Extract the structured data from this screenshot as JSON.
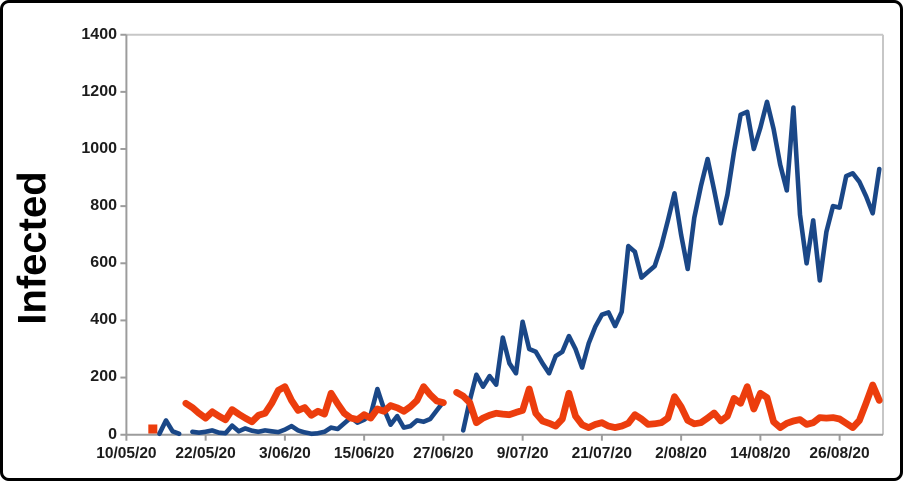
{
  "figure": {
    "ylabel": "Infected"
  },
  "chart_data": {
    "type": "line",
    "title": "",
    "xlabel": "",
    "ylabel": "Infected",
    "ylim": [
      0,
      1400
    ],
    "grid": "none",
    "legend_position": "none",
    "y_ticks": [
      0,
      200,
      400,
      600,
      800,
      1000,
      1200,
      1400
    ],
    "y_tick_labels": [
      "0",
      "200",
      "400",
      "600",
      "800",
      "1000",
      "1200",
      "1400"
    ],
    "x_tick_labels": [
      "10/05/20",
      "22/05/20",
      "3/06/20",
      "15/06/20",
      "27/06/20",
      "9/07/20",
      "21/07/20",
      "2/08/20",
      "14/08/20",
      "26/08/20"
    ],
    "x_tick_days": [
      0,
      12,
      24,
      36,
      48,
      60,
      72,
      84,
      96,
      108
    ],
    "x_axis_start_date": "10/05/20",
    "data_start_day_offset": 4,
    "dates": [
      "14/05",
      "15/05",
      "16/05",
      "17/05",
      "18/05",
      "19/05",
      "20/05",
      "21/05",
      "22/05",
      "23/05",
      "24/05",
      "25/05",
      "26/05",
      "27/05",
      "28/05",
      "29/05",
      "30/05",
      "31/05",
      "1/06",
      "2/06",
      "3/06",
      "4/06",
      "5/06",
      "6/06",
      "7/06",
      "8/06",
      "9/06",
      "10/06",
      "11/06",
      "12/06",
      "13/06",
      "14/06",
      "15/06",
      "16/06",
      "17/06",
      "18/06",
      "19/06",
      "20/06",
      "21/06",
      "22/06",
      "23/06",
      "24/06",
      "25/06",
      "26/06",
      "27/06",
      "28/06",
      "29/06",
      "30/06",
      "1/07",
      "2/07",
      "3/07",
      "4/07",
      "5/07",
      "6/07",
      "7/07",
      "8/07",
      "9/07",
      "10/07",
      "11/07",
      "12/07",
      "13/07",
      "14/07",
      "15/07",
      "16/07",
      "17/07",
      "18/07",
      "19/07",
      "20/07",
      "21/07",
      "22/07",
      "23/07",
      "24/07",
      "25/07",
      "26/07",
      "27/07",
      "28/07",
      "29/07",
      "30/07",
      "31/07",
      "1/08",
      "2/08",
      "3/08",
      "4/08",
      "5/08",
      "6/08",
      "7/08",
      "8/08",
      "9/08",
      "10/08",
      "11/08",
      "12/08",
      "13/08",
      "14/08",
      "15/08",
      "16/08",
      "17/08",
      "18/08",
      "19/08",
      "20/08",
      "21/08",
      "22/08",
      "23/08",
      "24/08",
      "25/08",
      "26/08",
      "27/08",
      "28/08",
      "29/08",
      "30/08",
      "31/08",
      "1/09"
    ],
    "series": [
      {
        "name": "series-blue",
        "color": "#1a4787",
        "stroke_width": 4.6,
        "values": [
          null,
          3,
          50,
          12,
          3,
          null,
          10,
          7,
          10,
          15,
          7,
          5,
          32,
          12,
          22,
          14,
          10,
          15,
          12,
          9,
          18,
          30,
          15,
          8,
          3,
          5,
          10,
          25,
          20,
          40,
          60,
          42,
          52,
          70,
          160,
          90,
          35,
          65,
          25,
          30,
          50,
          45,
          55,
          85,
          115,
          null,
          null,
          15,
          120,
          210,
          168,
          205,
          175,
          340,
          250,
          215,
          395,
          300,
          290,
          250,
          215,
          275,
          290,
          345,
          300,
          235,
          320,
          378,
          420,
          428,
          380,
          430,
          660,
          640,
          550,
          570,
          590,
          660,
          750,
          845,
          700,
          580,
          760,
          870,
          965,
          855,
          740,
          840,
          990,
          1120,
          1130,
          1000,
          1075,
          1165,
          1070,
          945,
          855,
          1145,
          770,
          600,
          750,
          540,
          710,
          800,
          795,
          905,
          915,
          885,
          835,
          775,
          930
        ]
      },
      {
        "name": "series-orange",
        "color": "#ec3d0d",
        "stroke_width": 6.8,
        "values": [
          20,
          null,
          null,
          null,
          null,
          110,
          95,
          75,
          58,
          80,
          65,
          52,
          88,
          72,
          58,
          45,
          68,
          75,
          110,
          155,
          168,
          120,
          85,
          95,
          68,
          82,
          72,
          145,
          108,
          75,
          58,
          53,
          70,
          58,
          90,
          82,
          102,
          94,
          82,
          98,
          120,
          168,
          140,
          118,
          112,
          null,
          148,
          135,
          112,
          42,
          58,
          68,
          75,
          72,
          70,
          78,
          85,
          160,
          75,
          48,
          40,
          30,
          55,
          145,
          65,
          35,
          25,
          36,
          42,
          30,
          25,
          30,
          40,
          70,
          55,
          36,
          38,
          42,
          58,
          133,
          98,
          50,
          38,
          42,
          58,
          76,
          48,
          65,
          127,
          110,
          168,
          90,
          145,
          130,
          45,
          25,
          40,
          48,
          53,
          36,
          42,
          60,
          58,
          60,
          55,
          40,
          25,
          50,
          110,
          174,
          120
        ]
      }
    ]
  }
}
